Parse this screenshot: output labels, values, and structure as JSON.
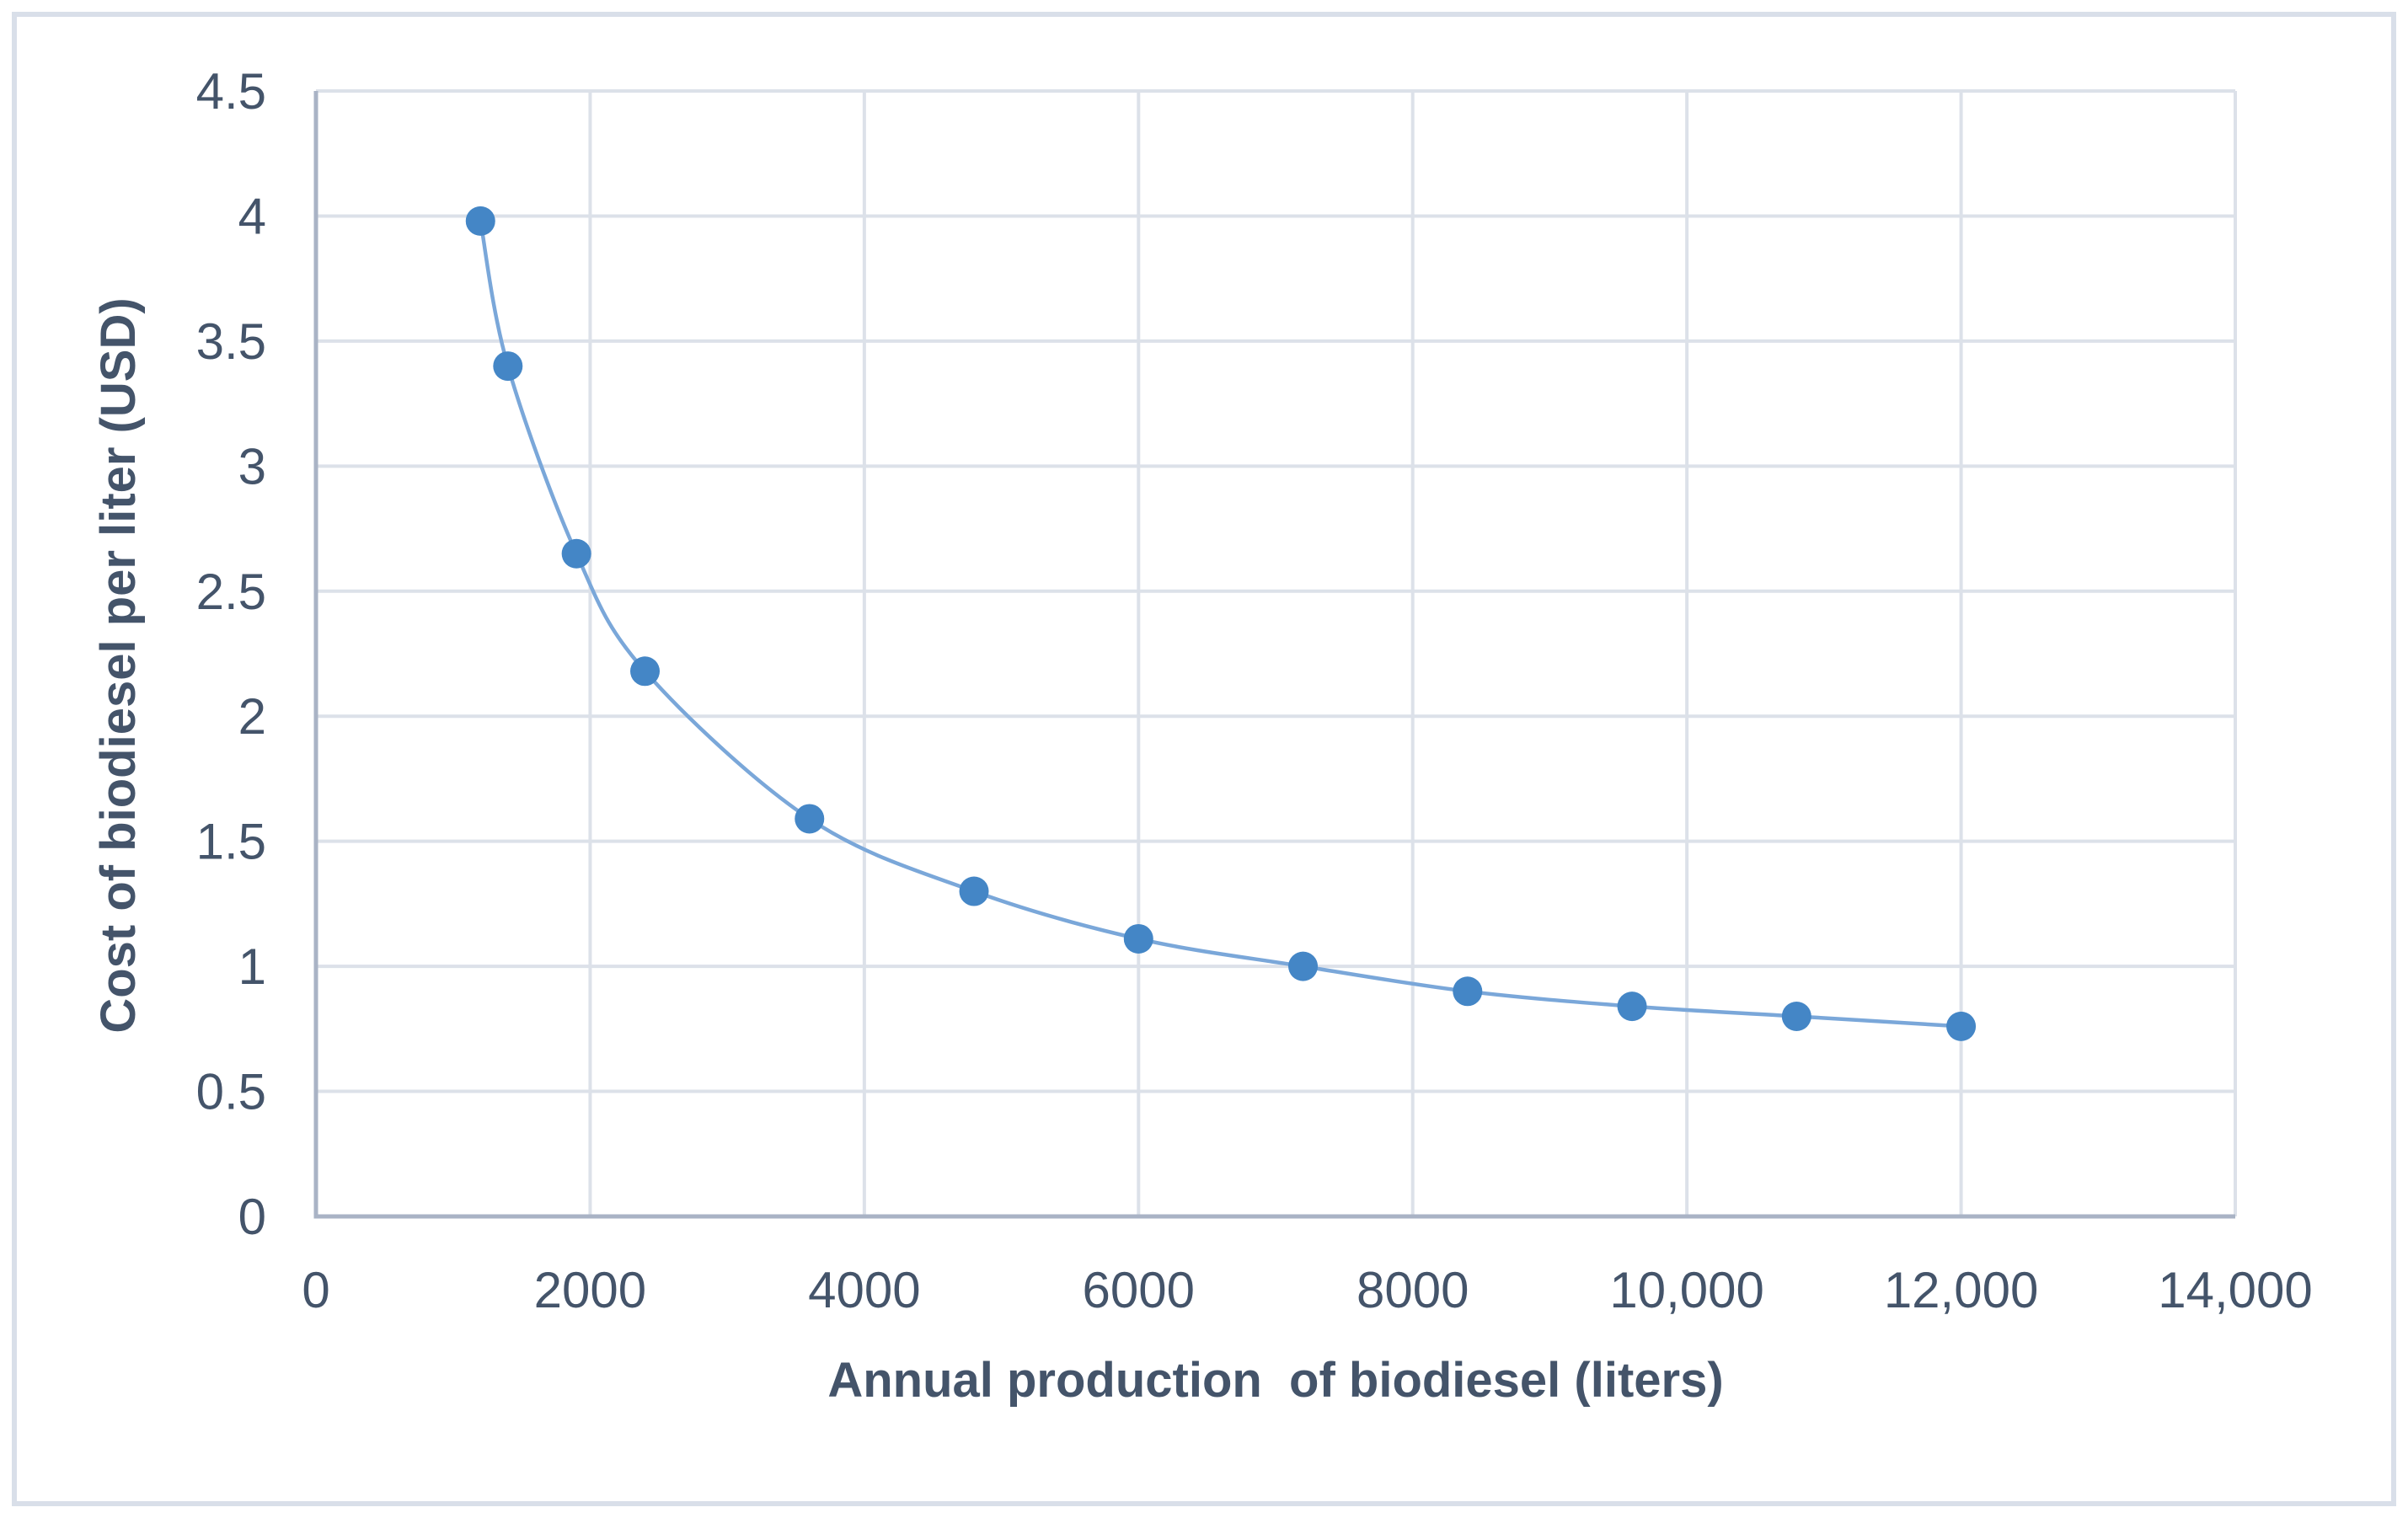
{
  "figure": {
    "background_color": "#ffffff",
    "border_color": "#d9dfe9"
  },
  "chart_data": {
    "type": "line",
    "title": "",
    "xlabel": "Annual production  of biodiesel (liters)",
    "ylabel": "Cost of biodiesel per liter (USD)",
    "x": [
      1200,
      1400,
      1900,
      2400,
      3600,
      4800,
      6000,
      7200,
      8400,
      9600,
      10800,
      12000
    ],
    "y": [
      3.98,
      3.4,
      2.65,
      2.18,
      1.59,
      1.3,
      1.11,
      1.0,
      0.9,
      0.84,
      0.8,
      0.76
    ],
    "xlim": [
      0,
      14000
    ],
    "ylim": [
      0,
      4.5
    ],
    "x_ticks": [
      0,
      2000,
      4000,
      6000,
      8000,
      10000,
      12000,
      14000
    ],
    "x_tick_labels": [
      "0",
      "2000",
      "4000",
      "6000",
      "8000",
      "10,000",
      "12,000",
      "14,000"
    ],
    "y_ticks": [
      0,
      0.5,
      1,
      1.5,
      2,
      2.5,
      3,
      3.5,
      4,
      4.5
    ],
    "y_tick_labels": [
      "0",
      "0.5",
      "1",
      "1.5",
      "2",
      "2.5",
      "3",
      "3.5",
      "4",
      "4.5"
    ],
    "grid": true,
    "legend": false,
    "smooth": true,
    "marker": "circle",
    "line_color": "#7aa7d9",
    "marker_color": "#4486c6",
    "gridline_color": "#dce1e9",
    "axis_line_color": "#a9b3c5",
    "text_color": "#44546a"
  }
}
